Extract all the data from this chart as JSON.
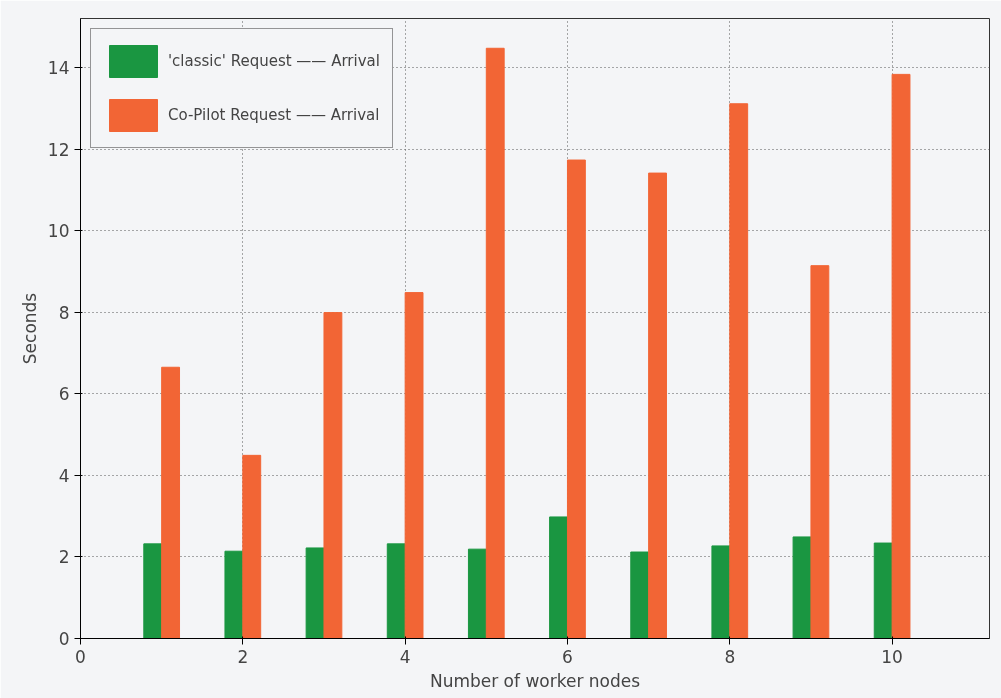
{
  "chart_data": {
    "type": "bar",
    "xlabel": "Number of worker nodes",
    "ylabel": "Seconds",
    "x": [
      1,
      2,
      3,
      4,
      5,
      6,
      7,
      8,
      9,
      10
    ],
    "series": [
      {
        "name": "'classic' Request —— Arrival",
        "color": "#1a9641",
        "values": [
          2.32,
          2.14,
          2.22,
          2.32,
          2.19,
          2.98,
          2.12,
          2.27,
          2.49,
          2.34
        ]
      },
      {
        "name": "Co-Pilot Request —— Arrival",
        "color": "#f26535",
        "values": [
          6.65,
          4.49,
          7.99,
          8.48,
          14.47,
          11.73,
          11.41,
          13.11,
          9.14,
          13.83
        ]
      }
    ],
    "xlim": [
      0,
      11.2
    ],
    "xticks": [
      0,
      2,
      4,
      6,
      8,
      10
    ],
    "ylim": [
      0,
      15.2
    ],
    "yticks": [
      0,
      2,
      4,
      6,
      8,
      10,
      12,
      14
    ],
    "grid": true,
    "legend": "top left"
  }
}
